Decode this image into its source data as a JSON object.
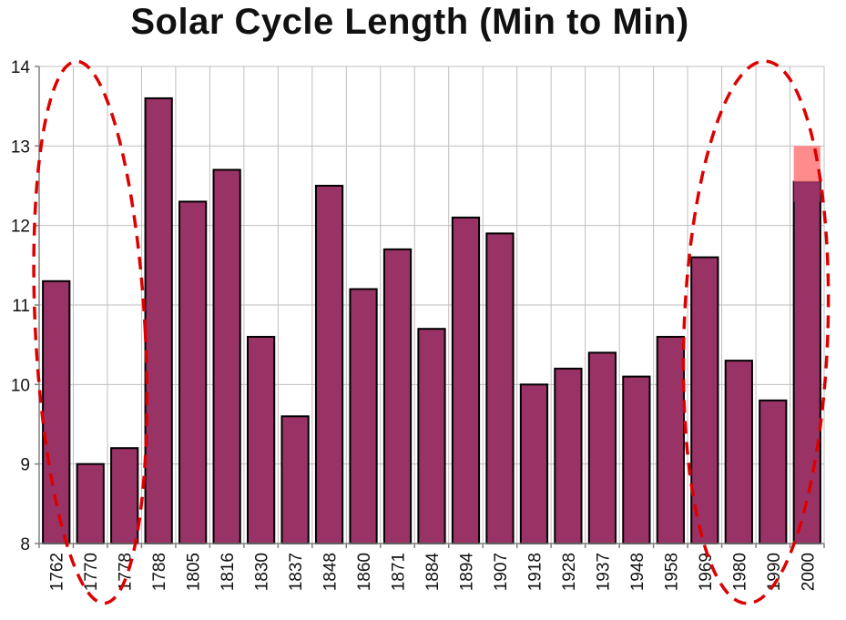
{
  "chart_data": {
    "type": "bar",
    "title": "Solar Cycle Length (Min to Min)",
    "xlabel": "",
    "ylabel": "",
    "ylim": [
      8,
      14
    ],
    "yticks": [
      8,
      9,
      10,
      11,
      12,
      13,
      14
    ],
    "grid": true,
    "legend": "none",
    "categories": [
      "1762",
      "1770",
      "1778",
      "1788",
      "1805",
      "1816",
      "1830",
      "1837",
      "1848",
      "1860",
      "1871",
      "1884",
      "1894",
      "1907",
      "1918",
      "1928",
      "1937",
      "1948",
      "1958",
      "1969",
      "1980",
      "1990",
      "2000"
    ],
    "values": [
      11.3,
      9.0,
      9.2,
      13.6,
      12.3,
      12.7,
      10.6,
      9.6,
      12.5,
      11.2,
      11.7,
      10.7,
      12.1,
      11.9,
      10.0,
      10.2,
      10.4,
      10.1,
      10.6,
      11.6,
      10.3,
      9.8,
      12.55
    ],
    "projection": {
      "category": "2000",
      "from": 12.55,
      "to": 13.0
    },
    "highlight_groups": [
      [
        "1762",
        "1770",
        "1778"
      ],
      [
        "1969",
        "1980",
        "1990",
        "2000"
      ]
    ],
    "colors": {
      "bar_fill": "#993366",
      "bar_stroke": "#000000",
      "projection_fill": "#ff8080",
      "highlight_stroke": "#dd0000",
      "grid": "#bfbfbf",
      "axis": "#808080"
    }
  }
}
